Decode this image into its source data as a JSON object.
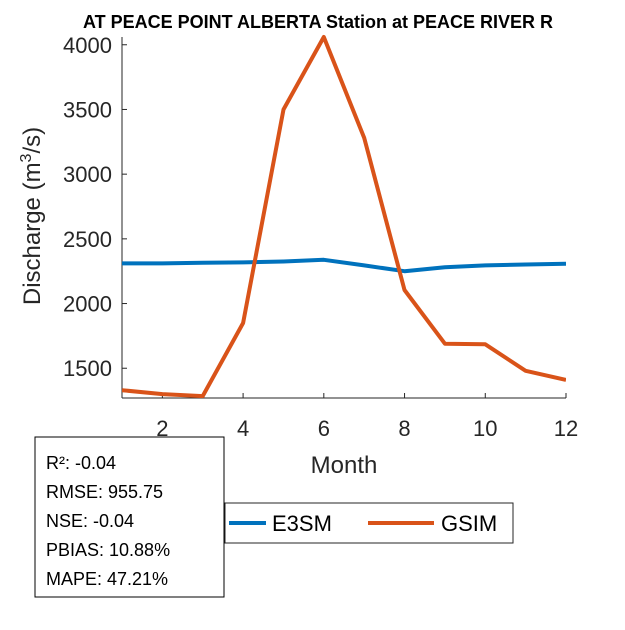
{
  "chart_data": {
    "type": "line",
    "title": "AT PEACE POINT ALBERTA  Station at  PEACE RIVER  R",
    "xlabel": "Month",
    "ylabel_main": "Discharge (m",
    "ylabel_sup": "3",
    "ylabel_tail": "/s)",
    "xlim": [
      1,
      12
    ],
    "ylim": [
      1270,
      4060
    ],
    "x_ticks": [
      2,
      4,
      6,
      8,
      10,
      12
    ],
    "y_ticks": [
      1500,
      2000,
      2500,
      3000,
      3500,
      4000
    ],
    "grid": false,
    "x": [
      1,
      2,
      3,
      4,
      5,
      6,
      7,
      8,
      9,
      10,
      11,
      12
    ],
    "series": [
      {
        "name": "E3SM",
        "color": "#0072BD",
        "values": [
          2310,
          2310,
          2315,
          2318,
          2325,
          2338,
          2295,
          2250,
          2280,
          2295,
          2302,
          2308
        ]
      },
      {
        "name": "GSIM",
        "color": "#D95319",
        "values": [
          1330,
          1300,
          1285,
          1850,
          3500,
          4060,
          3280,
          2105,
          1690,
          1685,
          1480,
          1410
        ]
      }
    ],
    "legend_position": "bottom"
  },
  "stats_box": {
    "r2": "R²: -0.04",
    "rmse": "RMSE: 955.75",
    "nse": "NSE: -0.04",
    "pbias": "PBIAS: 10.88%",
    "mape": "MAPE: 47.21%"
  }
}
